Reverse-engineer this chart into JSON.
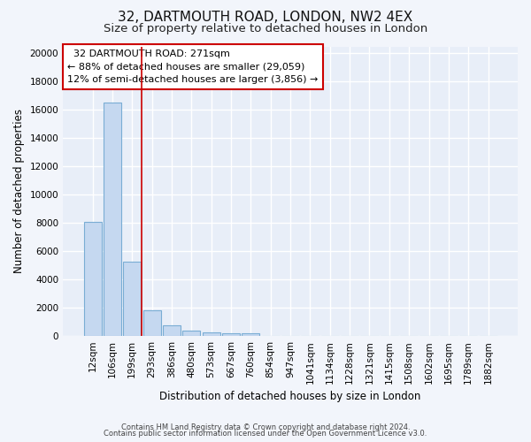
{
  "title": "32, DARTMOUTH ROAD, LONDON, NW2 4EX",
  "subtitle": "Size of property relative to detached houses in London",
  "xlabel": "Distribution of detached houses by size in London",
  "ylabel": "Number of detached properties",
  "footnote1": "Contains HM Land Registry data © Crown copyright and database right 2024.",
  "footnote2": "Contains public sector information licensed under the Open Government Licence v3.0.",
  "annotation_title": "32 DARTMOUTH ROAD: 271sqm",
  "annotation_line1": "← 88% of detached houses are smaller (29,059)",
  "annotation_line2": "12% of semi-detached houses are larger (3,856) →",
  "bar_labels": [
    "12sqm",
    "106sqm",
    "199sqm",
    "293sqm",
    "386sqm",
    "480sqm",
    "573sqm",
    "667sqm",
    "760sqm",
    "854sqm",
    "947sqm",
    "1041sqm",
    "1134sqm",
    "1228sqm",
    "1321sqm",
    "1415sqm",
    "1508sqm",
    "1602sqm",
    "1695sqm",
    "1789sqm",
    "1882sqm"
  ],
  "bar_values": [
    8100,
    16550,
    5280,
    1820,
    780,
    350,
    280,
    200,
    180,
    0,
    0,
    0,
    0,
    0,
    0,
    0,
    0,
    0,
    0,
    0,
    0
  ],
  "bar_color": "#c5d8f0",
  "bar_edge_color": "#7aadd4",
  "vline_x": 2.47,
  "vline_color": "#cc0000",
  "annotation_box_color": "#cc0000",
  "background_color": "#f2f5fb",
  "plot_bg_color": "#e8eef8",
  "ylim": [
    0,
    20500
  ],
  "yticks": [
    0,
    2000,
    4000,
    6000,
    8000,
    10000,
    12000,
    14000,
    16000,
    18000,
    20000
  ],
  "grid_color": "#ffffff",
  "title_fontsize": 11,
  "subtitle_fontsize": 9.5,
  "axis_label_fontsize": 8.5,
  "tick_fontsize": 7.5,
  "annotation_fontsize": 8,
  "footnote_fontsize": 6
}
